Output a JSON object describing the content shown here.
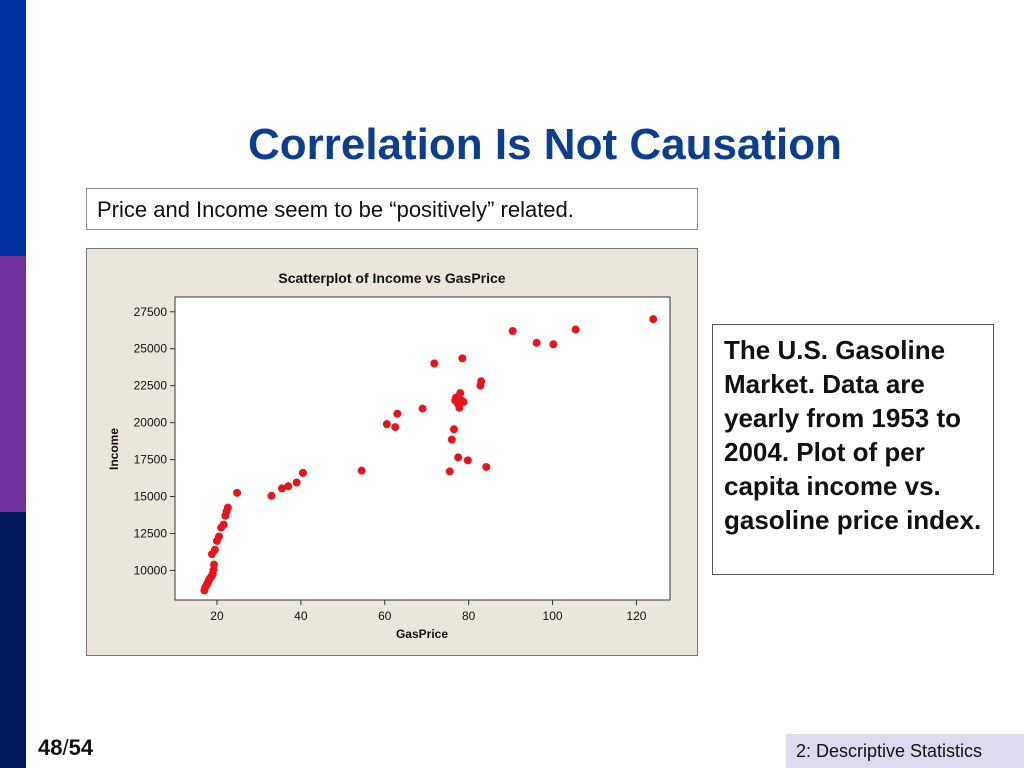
{
  "slide": {
    "title": "Correlation Is Not Causation",
    "subtitle": "Price and Income seem to be “positively” related.",
    "note": "The U.S. Gasoline Market.  Data are yearly from 1953 to 2004.  Plot of per capita income vs. gasoline price index.",
    "page_current": "48",
    "page_separator": "/",
    "page_total": "54",
    "footer_tag": "2: Descriptive Statistics"
  },
  "colors": {
    "title": "#0b3d91",
    "stripe_top": "#0033a0",
    "stripe_middle": "#7030a0",
    "stripe_bottom": "#001a5e",
    "footer_bg": "#ddd9ee",
    "chart_bg": "#eae6db",
    "plot_bg": "#ffffff",
    "point": "#e8141b"
  },
  "chart_data": {
    "type": "scatter",
    "title": "Scatterplot of Income vs GasPrice",
    "xlabel": "GasPrice",
    "ylabel": "Income",
    "xlim": [
      10,
      128
    ],
    "ylim": [
      8000,
      28500
    ],
    "xticks": [
      20,
      40,
      60,
      80,
      100,
      120
    ],
    "yticks": [
      10000,
      12500,
      15000,
      17500,
      20000,
      22500,
      25000,
      27500
    ],
    "grid": false,
    "points": [
      [
        17.0,
        8650
      ],
      [
        17.2,
        8850
      ],
      [
        17.5,
        9000
      ],
      [
        17.8,
        9150
      ],
      [
        18.0,
        9300
      ],
      [
        18.3,
        9450
      ],
      [
        18.7,
        9600
      ],
      [
        19.0,
        9750
      ],
      [
        19.2,
        10050
      ],
      [
        19.3,
        10400
      ],
      [
        18.8,
        11100
      ],
      [
        19.5,
        11400
      ],
      [
        20.0,
        12000
      ],
      [
        20.5,
        12300
      ],
      [
        21.0,
        12900
      ],
      [
        21.6,
        13100
      ],
      [
        22.0,
        13700
      ],
      [
        22.3,
        14000
      ],
      [
        22.6,
        14250
      ],
      [
        24.8,
        15250
      ],
      [
        33.0,
        15050
      ],
      [
        35.5,
        15550
      ],
      [
        37.0,
        15700
      ],
      [
        39.0,
        15950
      ],
      [
        40.5,
        16600
      ],
      [
        54.5,
        16750
      ],
      [
        60.5,
        19900
      ],
      [
        62.5,
        19700
      ],
      [
        63.0,
        20600
      ],
      [
        69.0,
        20950
      ],
      [
        71.8,
        24000
      ],
      [
        75.5,
        16700
      ],
      [
        76.0,
        18850
      ],
      [
        76.5,
        19550
      ],
      [
        76.8,
        21500
      ],
      [
        77.0,
        21700
      ],
      [
        77.4,
        21300
      ],
      [
        77.8,
        21000
      ],
      [
        78.0,
        22000
      ],
      [
        78.3,
        21500
      ],
      [
        78.5,
        24350
      ],
      [
        78.8,
        21400
      ],
      [
        77.5,
        17650
      ],
      [
        79.8,
        17450
      ],
      [
        82.8,
        22500
      ],
      [
        83.0,
        22800
      ],
      [
        84.2,
        17000
      ],
      [
        90.5,
        26200
      ],
      [
        96.2,
        25400
      ],
      [
        100.2,
        25300
      ],
      [
        105.5,
        26300
      ],
      [
        124.0,
        27000
      ]
    ]
  }
}
